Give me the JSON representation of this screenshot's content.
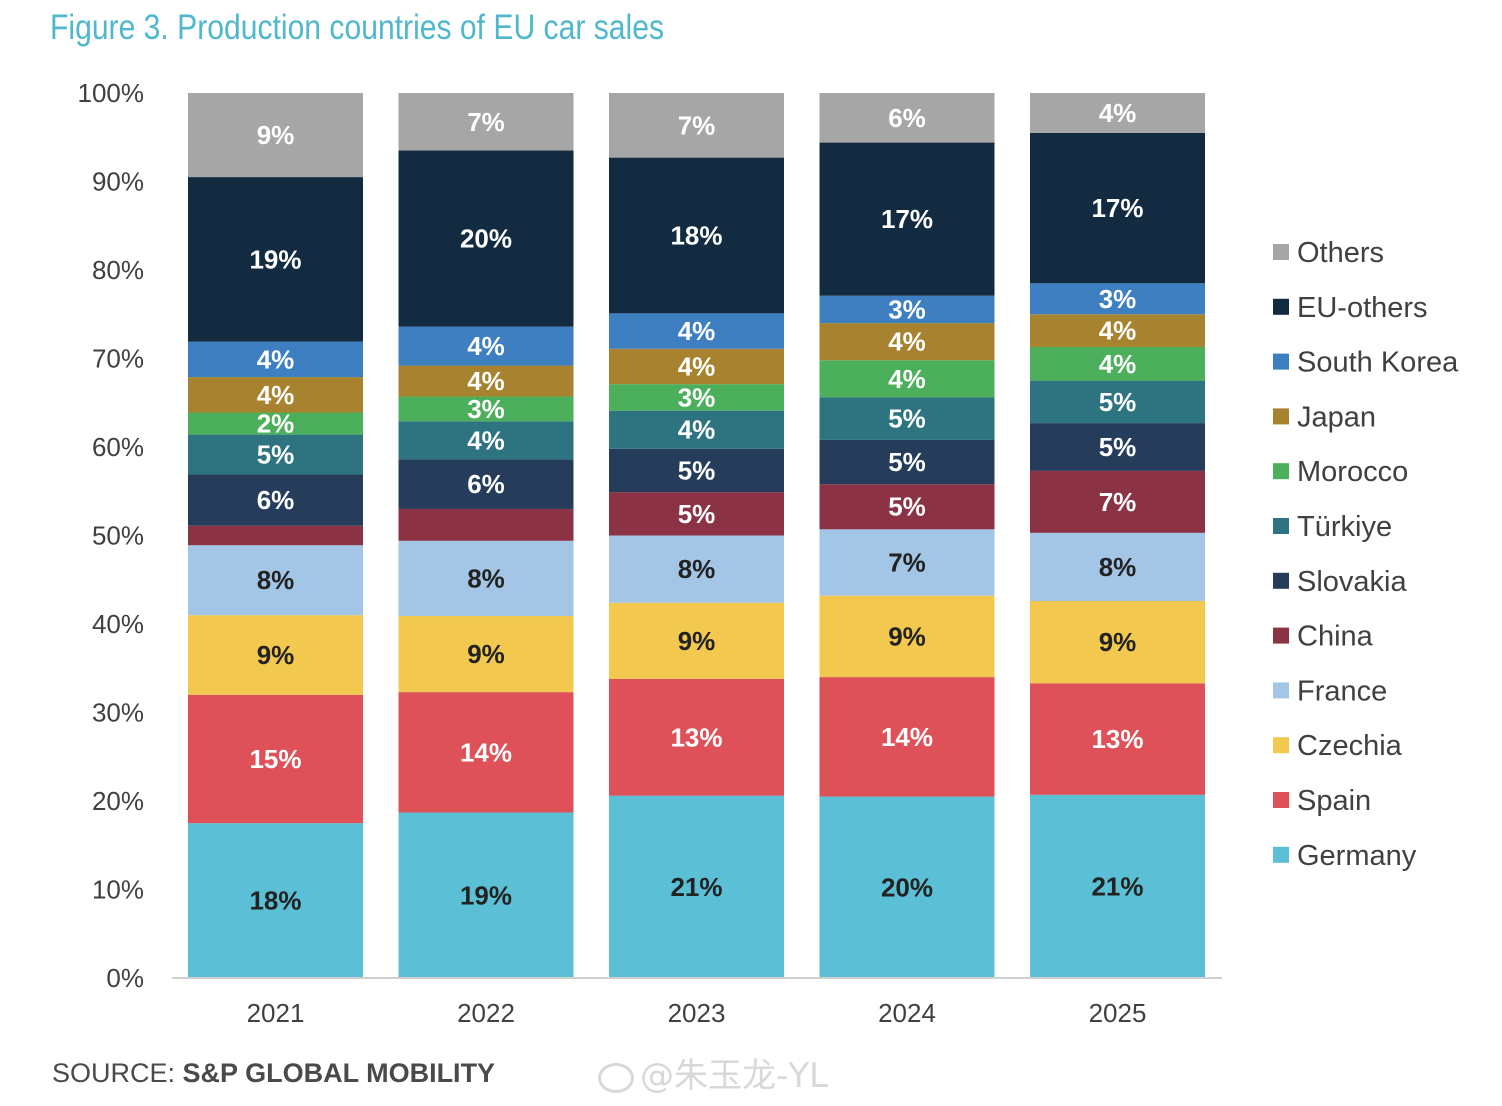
{
  "title": "Figure 3. Production countries of EU car sales",
  "source": {
    "label": "SOURCE:",
    "name": "S&P GLOBAL MOBILITY"
  },
  "watermark": "@朱玉龙-YL",
  "chart_data": {
    "type": "bar",
    "stacked": true,
    "title": "Figure 3. Production countries of EU car sales",
    "categories": [
      "2021",
      "2022",
      "2023",
      "2024",
      "2025"
    ],
    "ylim": [
      0,
      100
    ],
    "y_ticks": [
      "0%",
      "10%",
      "20%",
      "30%",
      "40%",
      "50%",
      "60%",
      "70%",
      "80%",
      "90%",
      "100%"
    ],
    "legend_position": "right",
    "series": [
      {
        "name": "Germany",
        "color": "#5bc0d6",
        "label_color": "#222222",
        "values": [
          17.5,
          18.7,
          20.6,
          20.5,
          20.7
        ],
        "labels": [
          "18%",
          "19%",
          "21%",
          "20%",
          "21%"
        ]
      },
      {
        "name": "Spain",
        "color": "#de5158",
        "label_color": "#ffffff",
        "values": [
          14.5,
          13.6,
          13.2,
          13.5,
          12.6
        ],
        "labels": [
          "15%",
          "14%",
          "13%",
          "14%",
          "13%"
        ]
      },
      {
        "name": "Czechia",
        "color": "#f2c84f",
        "label_color": "#222222",
        "values": [
          9.0,
          8.6,
          8.6,
          9.2,
          9.3
        ],
        "labels": [
          "9%",
          "9%",
          "9%",
          "9%",
          "9%"
        ]
      },
      {
        "name": "France",
        "color": "#a3c6e7",
        "label_color": "#222222",
        "values": [
          7.9,
          8.5,
          7.6,
          7.5,
          7.7
        ],
        "labels": [
          "8%",
          "8%",
          "8%",
          "7%",
          "8%"
        ]
      },
      {
        "name": "China",
        "color": "#8b3245",
        "label_color": "#ffffff",
        "values": [
          2.2,
          3.6,
          4.9,
          5.1,
          7.0
        ],
        "labels": [
          "",
          "",
          "5%",
          "5%",
          "7%"
        ]
      },
      {
        "name": "Slovakia",
        "color": "#253d5b",
        "label_color": "#ffffff",
        "values": [
          5.8,
          5.6,
          4.9,
          5.0,
          5.4
        ],
        "labels": [
          "6%",
          "6%",
          "5%",
          "5%",
          "5%"
        ]
      },
      {
        "name": "Türkiye",
        "color": "#2e7480",
        "label_color": "#ffffff",
        "values": [
          4.5,
          4.3,
          4.3,
          4.8,
          4.8
        ],
        "labels": [
          "5%",
          "4%",
          "4%",
          "5%",
          "5%"
        ]
      },
      {
        "name": "Morocco",
        "color": "#4caf5c",
        "label_color": "#ffffff",
        "values": [
          2.5,
          2.8,
          3.0,
          4.2,
          3.8
        ],
        "labels": [
          "2%",
          "3%",
          "3%",
          "4%",
          "4%"
        ]
      },
      {
        "name": "Japan",
        "color": "#a8832f",
        "label_color": "#ffffff",
        "values": [
          4.0,
          3.5,
          4.0,
          4.2,
          3.7
        ],
        "labels": [
          "4%",
          "4%",
          "4%",
          "4%",
          "4%"
        ]
      },
      {
        "name": "South Korea",
        "color": "#3d7fc1",
        "label_color": "#ffffff",
        "values": [
          4.0,
          4.4,
          4.0,
          3.1,
          3.5
        ],
        "labels": [
          "4%",
          "4%",
          "4%",
          "3%",
          "3%"
        ]
      },
      {
        "name": "EU-others",
        "color": "#132b40",
        "label_color": "#ffffff",
        "values": [
          18.6,
          19.9,
          17.6,
          17.3,
          17.0
        ],
        "labels": [
          "19%",
          "20%",
          "18%",
          "17%",
          "17%"
        ]
      },
      {
        "name": "Others",
        "color": "#a6a6a6",
        "label_color": "#ffffff",
        "values": [
          9.5,
          6.5,
          7.3,
          5.6,
          4.5
        ],
        "labels": [
          "9%",
          "7%",
          "7%",
          "6%",
          "4%"
        ]
      }
    ]
  }
}
